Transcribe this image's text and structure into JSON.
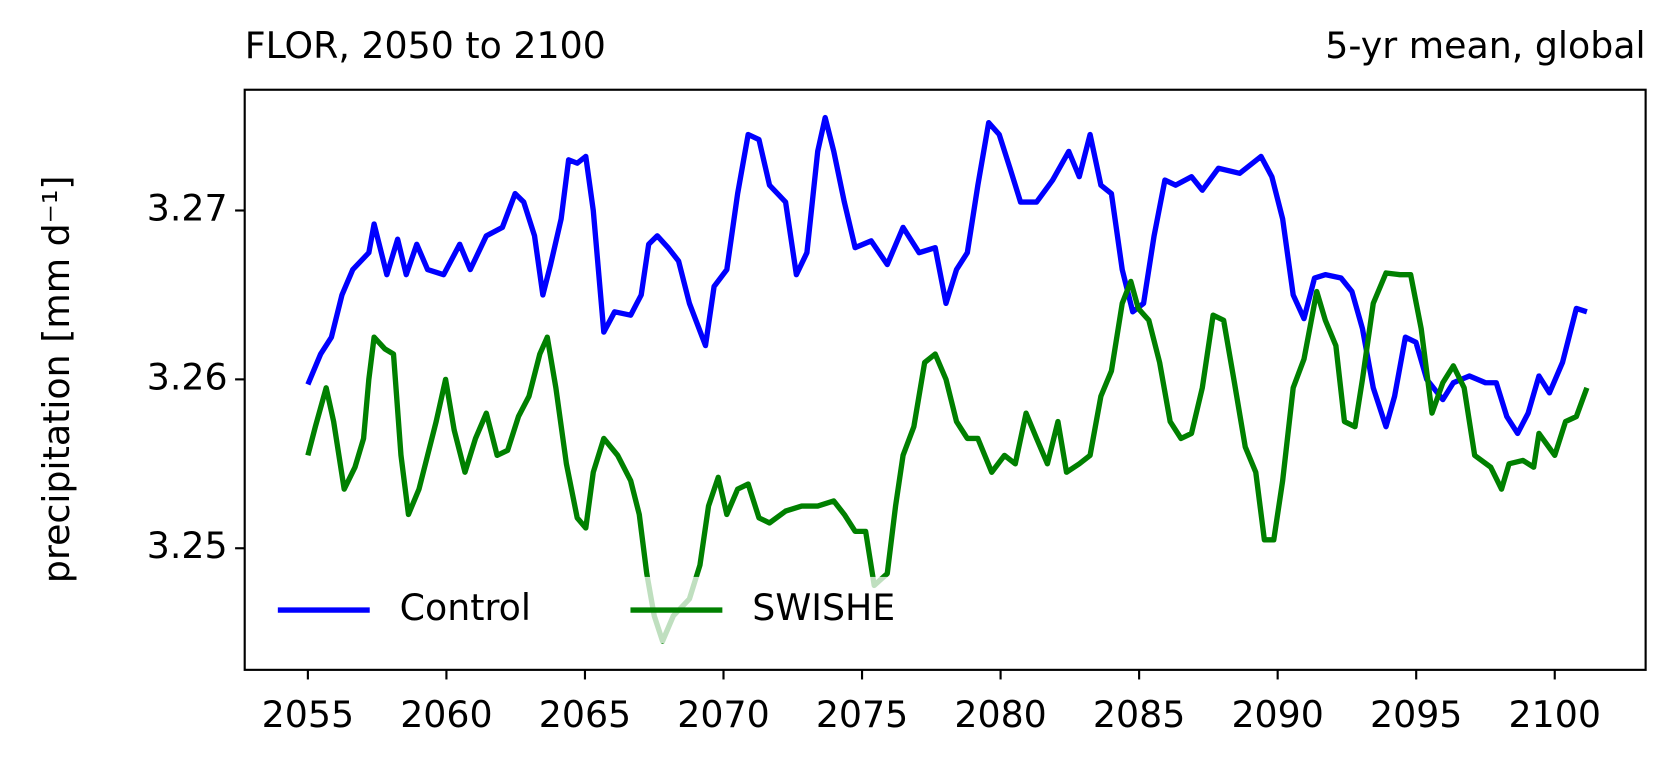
{
  "chart_data": {
    "type": "line",
    "title": "FLOR, 2050 to 2100",
    "subtitle": "5-yr mean, global",
    "y_label": "precipitation [mm d⁻¹]",
    "xlim": [
      2052.72,
      2103.28
    ],
    "ylim": [
      3.2428,
      3.27715
    ],
    "xticks": [
      2055,
      2060,
      2065,
      2070,
      2075,
      2080,
      2085,
      2090,
      2095,
      2100
    ],
    "yticks": [
      3.25,
      3.26,
      3.27
    ],
    "grid": false,
    "legend": "lower left",
    "series": [
      {
        "name": "Control",
        "color": "#0000ff",
        "x": [
          2055.0,
          2055.46,
          2055.85,
          2056.23,
          2056.62,
          2057.2,
          2057.39,
          2057.85,
          2058.24,
          2058.55,
          2058.93,
          2059.32,
          2059.9,
          2060.48,
          2060.86,
          2061.44,
          2062.02,
          2062.48,
          2062.79,
          2063.18,
          2063.48,
          2063.76,
          2064.14,
          2064.41,
          2064.72,
          2065.03,
          2065.3,
          2065.68,
          2066.07,
          2066.65,
          2067.03,
          2067.3,
          2067.61,
          2068.0,
          2068.38,
          2068.77,
          2069.35,
          2069.66,
          2070.12,
          2070.51,
          2070.89,
          2071.28,
          2071.66,
          2072.24,
          2072.63,
          2073.01,
          2073.4,
          2073.67,
          2073.98,
          2074.36,
          2074.75,
          2075.33,
          2075.91,
          2076.48,
          2077.06,
          2077.64,
          2078.03,
          2078.41,
          2078.8,
          2079.18,
          2079.57,
          2079.95,
          2080.34,
          2080.72,
          2081.3,
          2081.88,
          2082.46,
          2082.84,
          2083.23,
          2083.62,
          2084.0,
          2084.39,
          2084.77,
          2085.16,
          2085.54,
          2085.93,
          2086.32,
          2086.89,
          2087.28,
          2087.86,
          2088.63,
          2089.4,
          2089.79,
          2090.18,
          2090.56,
          2090.95,
          2091.33,
          2091.72,
          2092.29,
          2092.68,
          2093.06,
          2093.45,
          2093.91,
          2094.22,
          2094.61,
          2094.99,
          2095.38,
          2095.96,
          2096.34,
          2096.92,
          2097.5,
          2097.89,
          2098.27,
          2098.66,
          2099.04,
          2099.43,
          2099.81,
          2100.28,
          2100.78,
          2101.16
        ],
        "values": [
          3.2597,
          3.2615,
          3.2625,
          3.265,
          3.2665,
          3.2675,
          3.2692,
          3.2662,
          3.2683,
          3.2662,
          3.268,
          3.2665,
          3.2662,
          3.268,
          3.2665,
          3.2685,
          3.269,
          3.271,
          3.2705,
          3.2685,
          3.265,
          3.2668,
          3.2695,
          3.273,
          3.2728,
          3.2732,
          3.27,
          3.2628,
          3.264,
          3.2638,
          3.265,
          3.268,
          3.2685,
          3.2678,
          3.267,
          3.2645,
          3.262,
          3.2655,
          3.2665,
          3.271,
          3.2745,
          3.2742,
          3.2715,
          3.2705,
          3.2662,
          3.2675,
          3.2735,
          3.2755,
          3.2735,
          3.2705,
          3.2678,
          3.2682,
          3.2668,
          3.269,
          3.2675,
          3.2678,
          3.2645,
          3.2665,
          3.2675,
          3.2715,
          3.2752,
          3.2745,
          3.2725,
          3.2705,
          3.2705,
          3.2718,
          3.2735,
          3.272,
          3.2745,
          3.2715,
          3.271,
          3.2665,
          3.264,
          3.2645,
          3.2685,
          3.2718,
          3.2715,
          3.272,
          3.2712,
          3.2725,
          3.2722,
          3.2732,
          3.272,
          3.2695,
          3.265,
          3.2636,
          3.266,
          3.2662,
          3.266,
          3.2652,
          3.263,
          3.2595,
          3.2572,
          3.259,
          3.2625,
          3.2622,
          3.26,
          3.2588,
          3.2598,
          3.2602,
          3.2598,
          3.2598,
          3.2578,
          3.2568,
          3.258,
          3.2602,
          3.2592,
          3.261,
          3.2642,
          3.264
        ]
      },
      {
        "name": "SWISHE",
        "color": "#008000",
        "x": [
          2055.0,
          2055.27,
          2055.66,
          2055.93,
          2056.31,
          2056.7,
          2057.01,
          2057.2,
          2057.39,
          2057.78,
          2058.09,
          2058.36,
          2058.63,
          2059.01,
          2059.32,
          2059.63,
          2059.97,
          2060.28,
          2060.67,
          2061.05,
          2061.44,
          2061.83,
          2062.21,
          2062.6,
          2062.98,
          2063.37,
          2063.64,
          2063.95,
          2064.33,
          2064.72,
          2065.03,
          2065.3,
          2065.68,
          2066.18,
          2066.65,
          2066.96,
          2067.23,
          2067.5,
          2067.8,
          2068.19,
          2068.77,
          2069.15,
          2069.46,
          2069.81,
          2070.12,
          2070.51,
          2070.89,
          2071.28,
          2071.66,
          2072.24,
          2072.82,
          2073.4,
          2073.98,
          2074.36,
          2074.75,
          2075.13,
          2075.44,
          2075.91,
          2076.21,
          2076.48,
          2076.87,
          2077.26,
          2077.64,
          2078.03,
          2078.41,
          2078.8,
          2079.18,
          2079.68,
          2080.14,
          2080.53,
          2080.92,
          2081.3,
          2081.69,
          2082.07,
          2082.38,
          2082.84,
          2083.23,
          2083.62,
          2084.0,
          2084.39,
          2084.7,
          2084.97,
          2085.35,
          2085.74,
          2086.12,
          2086.51,
          2086.89,
          2087.28,
          2087.67,
          2088.05,
          2088.44,
          2088.83,
          2089.21,
          2089.52,
          2089.86,
          2090.18,
          2090.56,
          2090.95,
          2091.41,
          2091.72,
          2092.1,
          2092.41,
          2092.79,
          2093.06,
          2093.45,
          2093.91,
          2094.41,
          2094.8,
          2095.18,
          2095.57,
          2095.96,
          2096.34,
          2096.73,
          2097.11,
          2097.69,
          2098.08,
          2098.35,
          2098.85,
          2099.24,
          2099.43,
          2100.0,
          2100.39,
          2100.78,
          2101.16
        ],
        "values": [
          3.2555,
          3.2572,
          3.2595,
          3.2575,
          3.2535,
          3.2548,
          3.2565,
          3.26,
          3.2625,
          3.2618,
          3.2615,
          3.2555,
          3.252,
          3.2535,
          3.2555,
          3.2575,
          3.26,
          3.257,
          3.2545,
          3.2565,
          3.258,
          3.2555,
          3.2558,
          3.2578,
          3.259,
          3.2615,
          3.2625,
          3.2595,
          3.255,
          3.2518,
          3.2512,
          3.2545,
          3.2565,
          3.2555,
          3.254,
          3.252,
          3.2485,
          3.246,
          3.2445,
          3.246,
          3.247,
          3.249,
          3.2525,
          3.2542,
          3.252,
          3.2535,
          3.2538,
          3.2518,
          3.2515,
          3.2522,
          3.2525,
          3.2525,
          3.2528,
          3.252,
          3.251,
          3.251,
          3.2478,
          3.2485,
          3.2525,
          3.2555,
          3.2572,
          3.261,
          3.2615,
          3.26,
          3.2575,
          3.2565,
          3.2565,
          3.2545,
          3.2555,
          3.255,
          3.258,
          3.2565,
          3.255,
          3.2575,
          3.2545,
          3.255,
          3.2555,
          3.259,
          3.2605,
          3.2645,
          3.2658,
          3.2642,
          3.2635,
          3.261,
          3.2575,
          3.2565,
          3.2568,
          3.2595,
          3.2638,
          3.2635,
          3.2598,
          3.256,
          3.2545,
          3.2505,
          3.2505,
          3.254,
          3.2595,
          3.2612,
          3.2652,
          3.2635,
          3.262,
          3.2575,
          3.2572,
          3.26,
          3.2645,
          3.2663,
          3.2662,
          3.2662,
          3.263,
          3.258,
          3.2598,
          3.2608,
          3.2595,
          3.2555,
          3.2548,
          3.2535,
          3.255,
          3.2552,
          3.2548,
          3.2568,
          3.2555,
          3.2575,
          3.2578,
          3.2595
        ]
      }
    ]
  }
}
